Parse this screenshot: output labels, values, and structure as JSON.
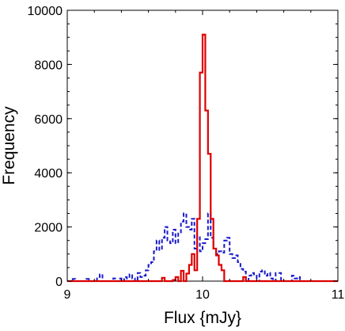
{
  "chart_data": {
    "type": "line",
    "step": true,
    "xlabel": "Flux  {mJy}",
    "ylabel": "Frequency",
    "xlim": [
      9,
      11
    ],
    "ylim": [
      0,
      10000
    ],
    "x_ticks": [
      9,
      10,
      11
    ],
    "x_tick_labels": [
      "9",
      "10",
      "11"
    ],
    "y_ticks": [
      0,
      2000,
      4000,
      6000,
      8000,
      10000
    ],
    "y_tick_labels": [
      "0",
      "2000",
      "4000",
      "6000",
      "8000",
      "10000"
    ],
    "grid": false,
    "bin_width": 0.02,
    "series": [
      {
        "color": "#dd0000",
        "dash": "solid",
        "x": [
          9.0,
          9.02,
          9.04,
          9.06,
          9.08,
          9.1,
          9.12,
          9.14,
          9.16,
          9.18,
          9.2,
          9.22,
          9.24,
          9.26,
          9.28,
          9.3,
          9.32,
          9.34,
          9.36,
          9.38,
          9.4,
          9.42,
          9.44,
          9.46,
          9.48,
          9.5,
          9.52,
          9.54,
          9.56,
          9.58,
          9.6,
          9.62,
          9.64,
          9.66,
          9.68,
          9.7,
          9.72,
          9.74,
          9.76,
          9.78,
          9.8,
          9.82,
          9.84,
          9.86,
          9.88,
          9.9,
          9.92,
          9.94,
          9.96,
          9.98,
          10.0,
          10.02,
          10.04,
          10.06,
          10.08,
          10.1,
          10.12,
          10.14,
          10.16,
          10.18,
          10.2,
          10.22,
          10.24,
          10.26,
          10.28,
          10.3,
          10.32,
          10.34,
          10.36,
          10.38,
          10.4,
          10.42,
          10.44,
          10.46,
          10.48,
          10.5,
          10.52,
          10.54,
          10.56,
          10.58,
          10.6,
          10.62,
          10.64,
          10.66,
          10.68,
          10.7,
          10.72,
          10.74,
          10.76,
          10.78,
          10.8,
          10.82,
          10.84,
          10.86,
          10.88,
          10.9,
          10.92,
          10.94,
          10.96,
          10.98
        ],
        "values": [
          0,
          0,
          0,
          0,
          0,
          0,
          0,
          0,
          0,
          0,
          0,
          0,
          0,
          0,
          0,
          0,
          0,
          0,
          0,
          0,
          0,
          0,
          0,
          0,
          0,
          0,
          0,
          0,
          0,
          0,
          0,
          0,
          0,
          0,
          0,
          120,
          0,
          0,
          0,
          40,
          150,
          0,
          380,
          0,
          280,
          600,
          1000,
          400,
          2300,
          7700,
          9100,
          6300,
          4700,
          2300,
          1200,
          950,
          600,
          400,
          0,
          0,
          0,
          0,
          0,
          0,
          0,
          150,
          0,
          0,
          0,
          0,
          0,
          0,
          0,
          0,
          0,
          0,
          0,
          0,
          0,
          0,
          0,
          0,
          0,
          0,
          0,
          0,
          0,
          0,
          0,
          0,
          0,
          0,
          0,
          0,
          0,
          0,
          0,
          0,
          0,
          0
        ]
      },
      {
        "color": "#1a1acc",
        "dash": "dashed",
        "x": [
          9.0,
          9.02,
          9.04,
          9.06,
          9.08,
          9.1,
          9.12,
          9.14,
          9.16,
          9.18,
          9.2,
          9.22,
          9.24,
          9.26,
          9.28,
          9.3,
          9.32,
          9.34,
          9.36,
          9.38,
          9.4,
          9.42,
          9.44,
          9.46,
          9.48,
          9.5,
          9.52,
          9.54,
          9.56,
          9.58,
          9.6,
          9.62,
          9.64,
          9.66,
          9.68,
          9.7,
          9.72,
          9.74,
          9.76,
          9.78,
          9.8,
          9.82,
          9.84,
          9.86,
          9.88,
          9.9,
          9.92,
          9.94,
          9.96,
          9.98,
          10.0,
          10.02,
          10.04,
          10.06,
          10.08,
          10.1,
          10.12,
          10.14,
          10.16,
          10.18,
          10.2,
          10.22,
          10.24,
          10.26,
          10.28,
          10.3,
          10.32,
          10.34,
          10.36,
          10.38,
          10.4,
          10.42,
          10.44,
          10.46,
          10.48,
          10.5,
          10.52,
          10.54,
          10.56,
          10.58,
          10.6,
          10.62,
          10.64,
          10.66,
          10.68,
          10.7,
          10.72,
          10.74,
          10.76,
          10.78,
          10.8,
          10.82,
          10.84,
          10.86,
          10.88,
          10.9,
          10.92,
          10.94,
          10.96,
          10.98
        ],
        "values": [
          0,
          0,
          80,
          0,
          0,
          0,
          0,
          80,
          0,
          0,
          0,
          150,
          250,
          0,
          0,
          0,
          0,
          100,
          0,
          100,
          0,
          150,
          100,
          250,
          100,
          0,
          300,
          150,
          200,
          400,
          600,
          700,
          1100,
          1500,
          1150,
          1600,
          2000,
          1500,
          1400,
          1900,
          1400,
          1800,
          2200,
          2500,
          2000,
          1900,
          2300,
          1200,
          1650,
          1100,
          1400,
          1550,
          2500,
          1600,
          1200,
          1000,
          1100,
          1050,
          1500,
          1600,
          1000,
          850,
          950,
          700,
          450,
          350,
          0,
          200,
          300,
          200,
          0,
          350,
          400,
          200,
          300,
          100,
          0,
          300,
          300,
          0,
          0,
          0,
          0,
          200,
          100,
          150,
          0,
          0,
          0,
          0,
          0,
          0,
          0,
          0,
          0,
          0,
          0,
          0,
          0,
          0
        ]
      }
    ]
  }
}
